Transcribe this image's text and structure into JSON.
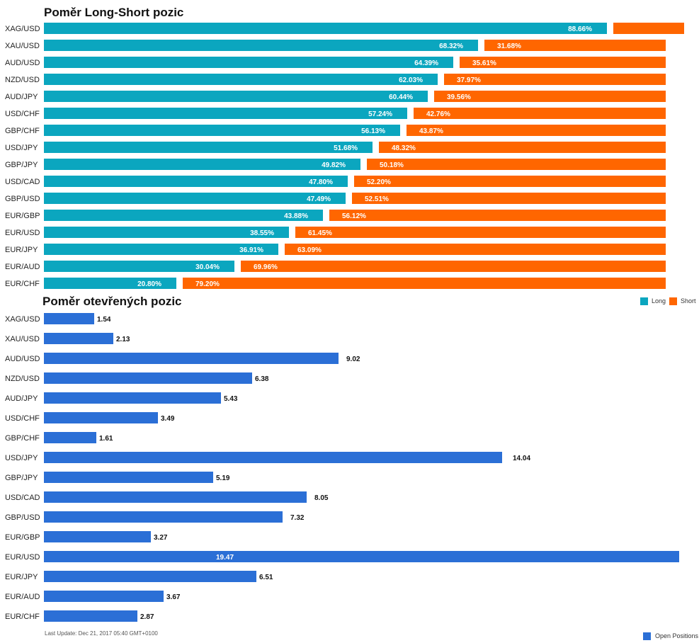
{
  "chart_data": [
    {
      "type": "bar",
      "orientation": "horizontal",
      "stacked": "percent",
      "title": "Poměr Long-Short pozic",
      "categories": [
        "XAG/USD",
        "XAU/USD",
        "AUD/USD",
        "NZD/USD",
        "AUD/JPY",
        "USD/CHF",
        "GBP/CHF",
        "USD/JPY",
        "GBP/JPY",
        "USD/CAD",
        "GBP/USD",
        "EUR/GBP",
        "EUR/USD",
        "EUR/JPY",
        "EUR/AUD",
        "EUR/CHF"
      ],
      "series": [
        {
          "name": "Long",
          "color": "#0ba6bf",
          "values": [
            88.66,
            68.32,
            64.39,
            62.03,
            60.44,
            57.24,
            56.13,
            51.68,
            49.82,
            47.8,
            47.49,
            43.88,
            38.55,
            36.91,
            30.04,
            20.8
          ],
          "labels": [
            "88.66%",
            "68.32%",
            "64.39%",
            "62.03%",
            "60.44%",
            "57.24%",
            "56.13%",
            "51.68%",
            "49.82%",
            "47.80%",
            "47.49%",
            "43.88%",
            "38.55%",
            "36.91%",
            "30.04%",
            "20.80%"
          ]
        },
        {
          "name": "Short",
          "color": "#ff6600",
          "values": [
            11.34,
            31.68,
            35.61,
            37.97,
            39.56,
            42.76,
            43.87,
            48.32,
            50.18,
            52.2,
            52.51,
            56.12,
            61.45,
            63.09,
            69.96,
            79.2
          ],
          "labels": [
            "",
            "31.68%",
            "35.61%",
            "37.97%",
            "39.56%",
            "42.76%",
            "43.87%",
            "48.32%",
            "50.18%",
            "52.20%",
            "52.51%",
            "56.12%",
            "61.45%",
            "63.09%",
            "69.96%",
            "79.20%"
          ]
        }
      ],
      "legend_position": "bottom-right",
      "grid": false
    },
    {
      "type": "bar",
      "orientation": "horizontal",
      "title": "Poměr otevřených pozic",
      "categories": [
        "XAG/USD",
        "XAU/USD",
        "AUD/USD",
        "NZD/USD",
        "AUD/JPY",
        "USD/CHF",
        "GBP/CHF",
        "USD/JPY",
        "GBP/JPY",
        "USD/CAD",
        "GBP/USD",
        "EUR/GBP",
        "EUR/USD",
        "EUR/JPY",
        "EUR/AUD",
        "EUR/CHF"
      ],
      "series": [
        {
          "name": "Open Positions",
          "color": "#2b6fd6",
          "values": [
            1.54,
            2.13,
            9.02,
            6.38,
            5.43,
            3.49,
            1.61,
            14.04,
            5.19,
            8.05,
            7.32,
            3.27,
            19.47,
            6.51,
            3.67,
            2.87
          ],
          "labels": [
            "1.54",
            "2.13",
            "9.02",
            "6.38",
            "5.43",
            "3.49",
            "1.61",
            "14.04",
            "5.19",
            "8.05",
            "7.32",
            "3.27",
            "19.47",
            "6.51",
            "3.67",
            "2.87"
          ]
        }
      ],
      "xlim": [
        0,
        19.47
      ],
      "legend_position": "bottom-right",
      "grid": false
    }
  ],
  "footer": {
    "last_update": "Last Update: Dec 21, 2017 05:40 GMT+0100"
  }
}
